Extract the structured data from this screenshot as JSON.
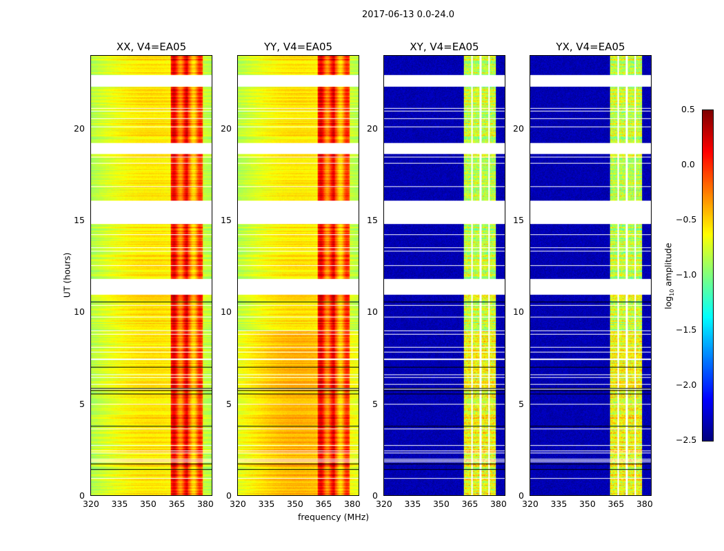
{
  "chart_data": {
    "type": "heatmap",
    "suptitle": "2017-06-13 0.0-24.0",
    "xlabel": "frequency (MHz)",
    "ylabel": "UT (hours)",
    "xlim": [
      320,
      384
    ],
    "ylim": [
      0,
      24
    ],
    "xticks": [
      "320",
      "335",
      "350",
      "365",
      "380"
    ],
    "yticks": [
      "0",
      "5",
      "10",
      "15",
      "20"
    ],
    "panels": [
      {
        "title": "XX, V4=EA05",
        "kind": "parallel"
      },
      {
        "title": "YY, V4=EA05",
        "kind": "parallel"
      },
      {
        "title": "XY, V4=EA05",
        "kind": "cross"
      },
      {
        "title": "YX, V4=EA05",
        "kind": "cross"
      }
    ],
    "flagged_hours": [
      [
        10.95,
        11.8
      ],
      [
        14.8,
        16.1
      ],
      [
        18.65,
        19.25
      ],
      [
        22.3,
        22.95
      ]
    ],
    "rfi_band_mhz": [
      362,
      379
    ],
    "colorbar": {
      "label": "log10 amplitude",
      "label_main": "log",
      "label_sub": "10",
      "label_rest": " amplitude",
      "range": [
        -2.5,
        0.5
      ],
      "ticks": [
        "0.5",
        "0.0",
        "−0.5",
        "−1.0",
        "−1.5",
        "−2.0",
        "−2.5"
      ],
      "colormap": "jet"
    }
  }
}
